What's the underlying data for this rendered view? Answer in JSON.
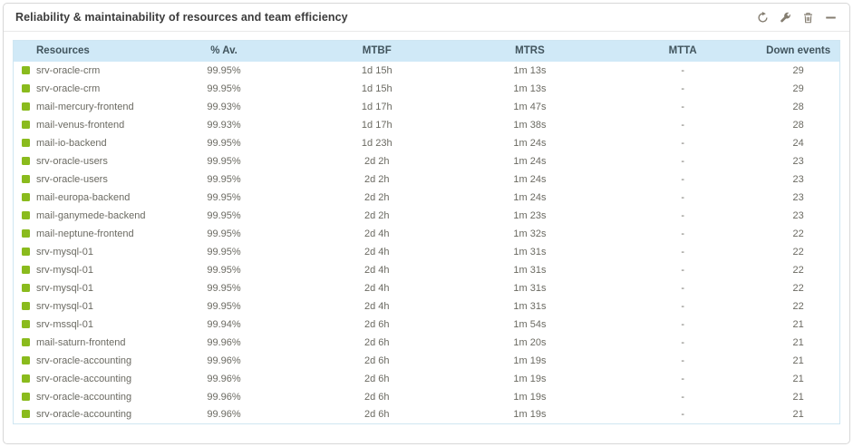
{
  "panel": {
    "title": "Reliability & maintainability of resources and team efficiency",
    "toolbar": [
      {
        "icon": "refresh-icon",
        "action": "refresh"
      },
      {
        "icon": "wrench-icon",
        "action": "configure"
      },
      {
        "icon": "trash-icon",
        "action": "delete"
      },
      {
        "icon": "minimize-icon",
        "action": "collapse"
      }
    ]
  },
  "colors": {
    "status_ok": "#8abb1d",
    "header_bg": "#d0e9f7",
    "header_text": "#41545d",
    "row_text": "#6b6a62",
    "table_border": "#cfe6f2",
    "icon_gray": "#847d70"
  },
  "table": {
    "columns": [
      "Resources",
      "% Av.",
      "MTBF",
      "MTRS",
      "MTTA",
      "Down events"
    ],
    "row_keys": [
      "resource",
      "availability",
      "mtbf",
      "mtrs",
      "mtta",
      "down_events"
    ],
    "rows": [
      {
        "resource": "srv-oracle-crm",
        "availability": "99.95%",
        "mtbf": "1d 15h",
        "mtrs": "1m 13s",
        "mtta": "-",
        "down_events": "29"
      },
      {
        "resource": "srv-oracle-crm",
        "availability": "99.95%",
        "mtbf": "1d 15h",
        "mtrs": "1m 13s",
        "mtta": "-",
        "down_events": "29"
      },
      {
        "resource": "mail-mercury-frontend",
        "availability": "99.93%",
        "mtbf": "1d 17h",
        "mtrs": "1m 47s",
        "mtta": "-",
        "down_events": "28"
      },
      {
        "resource": "mail-venus-frontend",
        "availability": "99.93%",
        "mtbf": "1d 17h",
        "mtrs": "1m 38s",
        "mtta": "-",
        "down_events": "28"
      },
      {
        "resource": "mail-io-backend",
        "availability": "99.95%",
        "mtbf": "1d 23h",
        "mtrs": "1m 24s",
        "mtta": "-",
        "down_events": "24"
      },
      {
        "resource": "srv-oracle-users",
        "availability": "99.95%",
        "mtbf": "2d 2h",
        "mtrs": "1m 24s",
        "mtta": "-",
        "down_events": "23"
      },
      {
        "resource": "srv-oracle-users",
        "availability": "99.95%",
        "mtbf": "2d 2h",
        "mtrs": "1m 24s",
        "mtta": "-",
        "down_events": "23"
      },
      {
        "resource": "mail-europa-backend",
        "availability": "99.95%",
        "mtbf": "2d 2h",
        "mtrs": "1m 24s",
        "mtta": "-",
        "down_events": "23"
      },
      {
        "resource": "mail-ganymede-backend",
        "availability": "99.95%",
        "mtbf": "2d 2h",
        "mtrs": "1m 23s",
        "mtta": "-",
        "down_events": "23"
      },
      {
        "resource": "mail-neptune-frontend",
        "availability": "99.95%",
        "mtbf": "2d 4h",
        "mtrs": "1m 32s",
        "mtta": "-",
        "down_events": "22"
      },
      {
        "resource": "srv-mysql-01",
        "availability": "99.95%",
        "mtbf": "2d 4h",
        "mtrs": "1m 31s",
        "mtta": "-",
        "down_events": "22"
      },
      {
        "resource": "srv-mysql-01",
        "availability": "99.95%",
        "mtbf": "2d 4h",
        "mtrs": "1m 31s",
        "mtta": "-",
        "down_events": "22"
      },
      {
        "resource": "srv-mysql-01",
        "availability": "99.95%",
        "mtbf": "2d 4h",
        "mtrs": "1m 31s",
        "mtta": "-",
        "down_events": "22"
      },
      {
        "resource": "srv-mysql-01",
        "availability": "99.95%",
        "mtbf": "2d 4h",
        "mtrs": "1m 31s",
        "mtta": "-",
        "down_events": "22"
      },
      {
        "resource": "srv-mssql-01",
        "availability": "99.94%",
        "mtbf": "2d 6h",
        "mtrs": "1m 54s",
        "mtta": "-",
        "down_events": "21"
      },
      {
        "resource": "mail-saturn-frontend",
        "availability": "99.96%",
        "mtbf": "2d 6h",
        "mtrs": "1m 20s",
        "mtta": "-",
        "down_events": "21"
      },
      {
        "resource": "srv-oracle-accounting",
        "availability": "99.96%",
        "mtbf": "2d 6h",
        "mtrs": "1m 19s",
        "mtta": "-",
        "down_events": "21"
      },
      {
        "resource": "srv-oracle-accounting",
        "availability": "99.96%",
        "mtbf": "2d 6h",
        "mtrs": "1m 19s",
        "mtta": "-",
        "down_events": "21"
      },
      {
        "resource": "srv-oracle-accounting",
        "availability": "99.96%",
        "mtbf": "2d 6h",
        "mtrs": "1m 19s",
        "mtta": "-",
        "down_events": "21"
      },
      {
        "resource": "srv-oracle-accounting",
        "availability": "99.96%",
        "mtbf": "2d 6h",
        "mtrs": "1m 19s",
        "mtta": "-",
        "down_events": "21"
      }
    ]
  }
}
